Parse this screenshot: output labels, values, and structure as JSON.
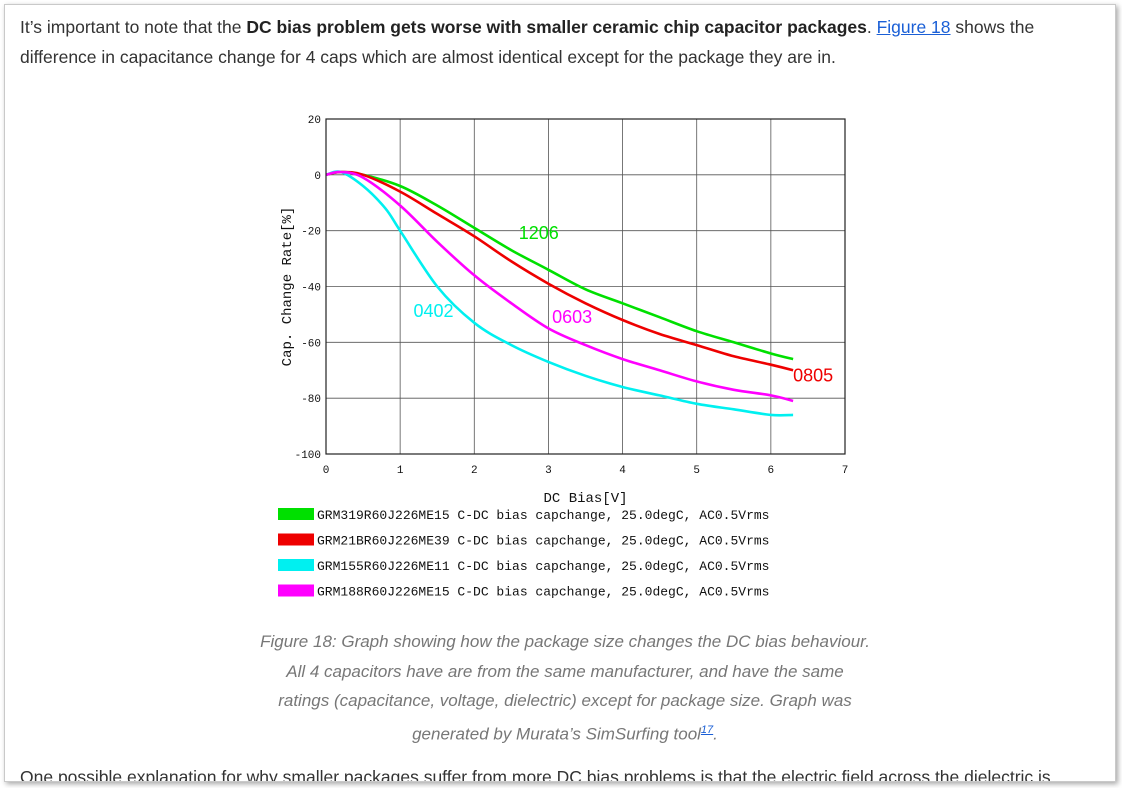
{
  "article": {
    "intro_before": "It’s important to note that the ",
    "intro_bold": "DC bias problem gets worse with smaller ceramic chip capacitor packages",
    "intro_mid": ". ",
    "intro_link": "Figure 18",
    "intro_after": " shows the difference in capacitance change for 4 caps which are almost identical except for the package they are in.",
    "caption_text": "Figure 18: Graph showing how the package size changes the DC bias behaviour. All 4 capacitors have are from the same manufacturer, and have the same ratings (capacitance, voltage, dielectric) except for package size. Graph was generated by Murata’s SimSurfing tool",
    "caption_ref": "17",
    "caption_end": ".",
    "outro": "One possible explanation for why smaller packages suffer from more DC bias problems is that the electric field across the dielectric is"
  },
  "chart_data": {
    "type": "line",
    "xlabel": "DC Bias[V]",
    "ylabel": "Cap. Change Rate[%]",
    "xlim": [
      0,
      7
    ],
    "ylim": [
      -100,
      20
    ],
    "x_ticks": [
      0,
      1,
      2,
      3,
      4,
      5,
      6,
      7
    ],
    "y_ticks": [
      20,
      0,
      -20,
      -40,
      -60,
      -80,
      -100
    ],
    "grid": true,
    "legend_position": "bottom",
    "series": [
      {
        "name": "GRM319R60J226ME15 C-DC bias capchange, 25.0degC, AC0.5Vrms",
        "label": "1206",
        "color": "#00e000",
        "x": [
          0,
          0.2,
          0.5,
          1.0,
          1.5,
          2.0,
          2.5,
          3.0,
          3.5,
          4.0,
          4.5,
          5.0,
          5.5,
          6.0,
          6.3
        ],
        "y": [
          0,
          1,
          0,
          -4,
          -11,
          -19,
          -27,
          -34,
          -41,
          -46,
          -51,
          -56,
          -60,
          -64,
          -66
        ]
      },
      {
        "name": "GRM21BR60J226ME39 C-DC bias capchange, 25.0degC, AC0.5Vrms",
        "label": "0805",
        "color": "#ee0000",
        "x": [
          0,
          0.2,
          0.5,
          1.0,
          1.5,
          2.0,
          2.5,
          3.0,
          3.5,
          4.0,
          4.5,
          5.0,
          5.5,
          6.0,
          6.3
        ],
        "y": [
          0,
          1,
          0,
          -6,
          -14,
          -22,
          -31,
          -39,
          -46,
          -52,
          -57,
          -61,
          -65,
          -68,
          -70
        ]
      },
      {
        "name": "GRM155R60J226ME11 C-DC bias capchange, 25.0degC, AC0.5Vrms",
        "label": "0402",
        "color": "#00f0f0",
        "x": [
          0,
          0.2,
          0.5,
          0.8,
          1.0,
          1.5,
          2.0,
          2.5,
          3.0,
          3.5,
          4.0,
          4.5,
          5.0,
          5.5,
          6.0,
          6.3
        ],
        "y": [
          0,
          1,
          -4,
          -12,
          -20,
          -40,
          -53,
          -61,
          -67,
          -72,
          -76,
          -79,
          -82,
          -84,
          -86,
          -86
        ]
      },
      {
        "name": "GRM188R60J226ME15 C-DC bias capchange, 25.0degC, AC0.5Vrms",
        "label": "0603",
        "color": "#ff00ff",
        "x": [
          0,
          0.2,
          0.5,
          1.0,
          1.5,
          2.0,
          2.5,
          3.0,
          3.5,
          4.0,
          4.5,
          5.0,
          5.5,
          6.0,
          6.3
        ],
        "y": [
          0,
          1,
          -1,
          -11,
          -24,
          -36,
          -46,
          -55,
          -61,
          -66,
          -70,
          -74,
          -77,
          -79,
          -81
        ]
      }
    ]
  }
}
